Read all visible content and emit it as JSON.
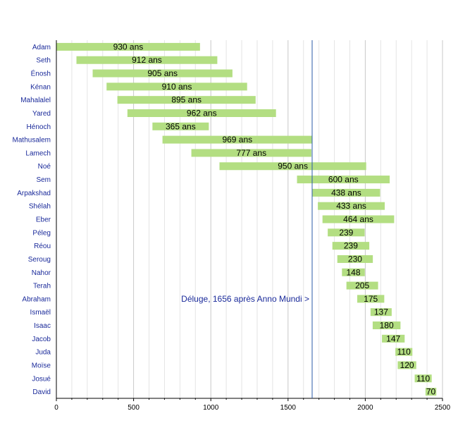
{
  "chart_data": {
    "type": "bar",
    "orientation": "horizontal",
    "categories": [
      "Adam",
      "Seth",
      "Énosh",
      "Kénan",
      "Mahalalel",
      "Yared",
      "Hénoch",
      "Mathusalem",
      "Lamech",
      "Noé",
      "Sem",
      "Arpakshad",
      "Shélah",
      "Eber",
      "Péleg",
      "Réou",
      "Seroug",
      "Nahor",
      "Terah",
      "Abraham",
      "Ismaël",
      "Isaac",
      "Jacob",
      "Juda",
      "Moïse",
      "Josué",
      "David"
    ],
    "starts": [
      0,
      130,
      235,
      325,
      395,
      460,
      622,
      687,
      874,
      1056,
      1558,
      1658,
      1693,
      1723,
      1757,
      1787,
      1819,
      1849,
      1878,
      1948,
      2034,
      2048,
      2108,
      2195,
      2210,
      2320,
      2390
    ],
    "values": [
      930,
      912,
      905,
      910,
      895,
      962,
      365,
      969,
      777,
      950,
      600,
      438,
      433,
      464,
      239,
      239,
      230,
      148,
      205,
      175,
      137,
      180,
      147,
      110,
      120,
      110,
      70
    ],
    "bar_labels": [
      "930 ans",
      "912 ans",
      "905 ans",
      "910 ans",
      "895 ans",
      "962 ans",
      "365 ans",
      "969 ans",
      "777 ans",
      "950 ans",
      "600 ans",
      "438 ans",
      "433 ans",
      "464 ans",
      "239",
      "239",
      "230",
      "148",
      "205",
      "175",
      "137",
      "180",
      "147",
      "110",
      "120",
      "110",
      "70"
    ],
    "xlim": [
      0,
      2500
    ],
    "xticks": [
      0,
      500,
      1000,
      1500,
      2000,
      2500
    ],
    "grid": "vertical",
    "annotation": {
      "text": "Déluge, 1656 après Anno Mundi >",
      "x": 1656
    },
    "colors": {
      "bar": "#b3de82",
      "label": "#1a2a9a",
      "flood_line": "#2a5aa8",
      "grid_major": "#c8c8c8",
      "grid_minor": "#e4e4e4"
    }
  }
}
